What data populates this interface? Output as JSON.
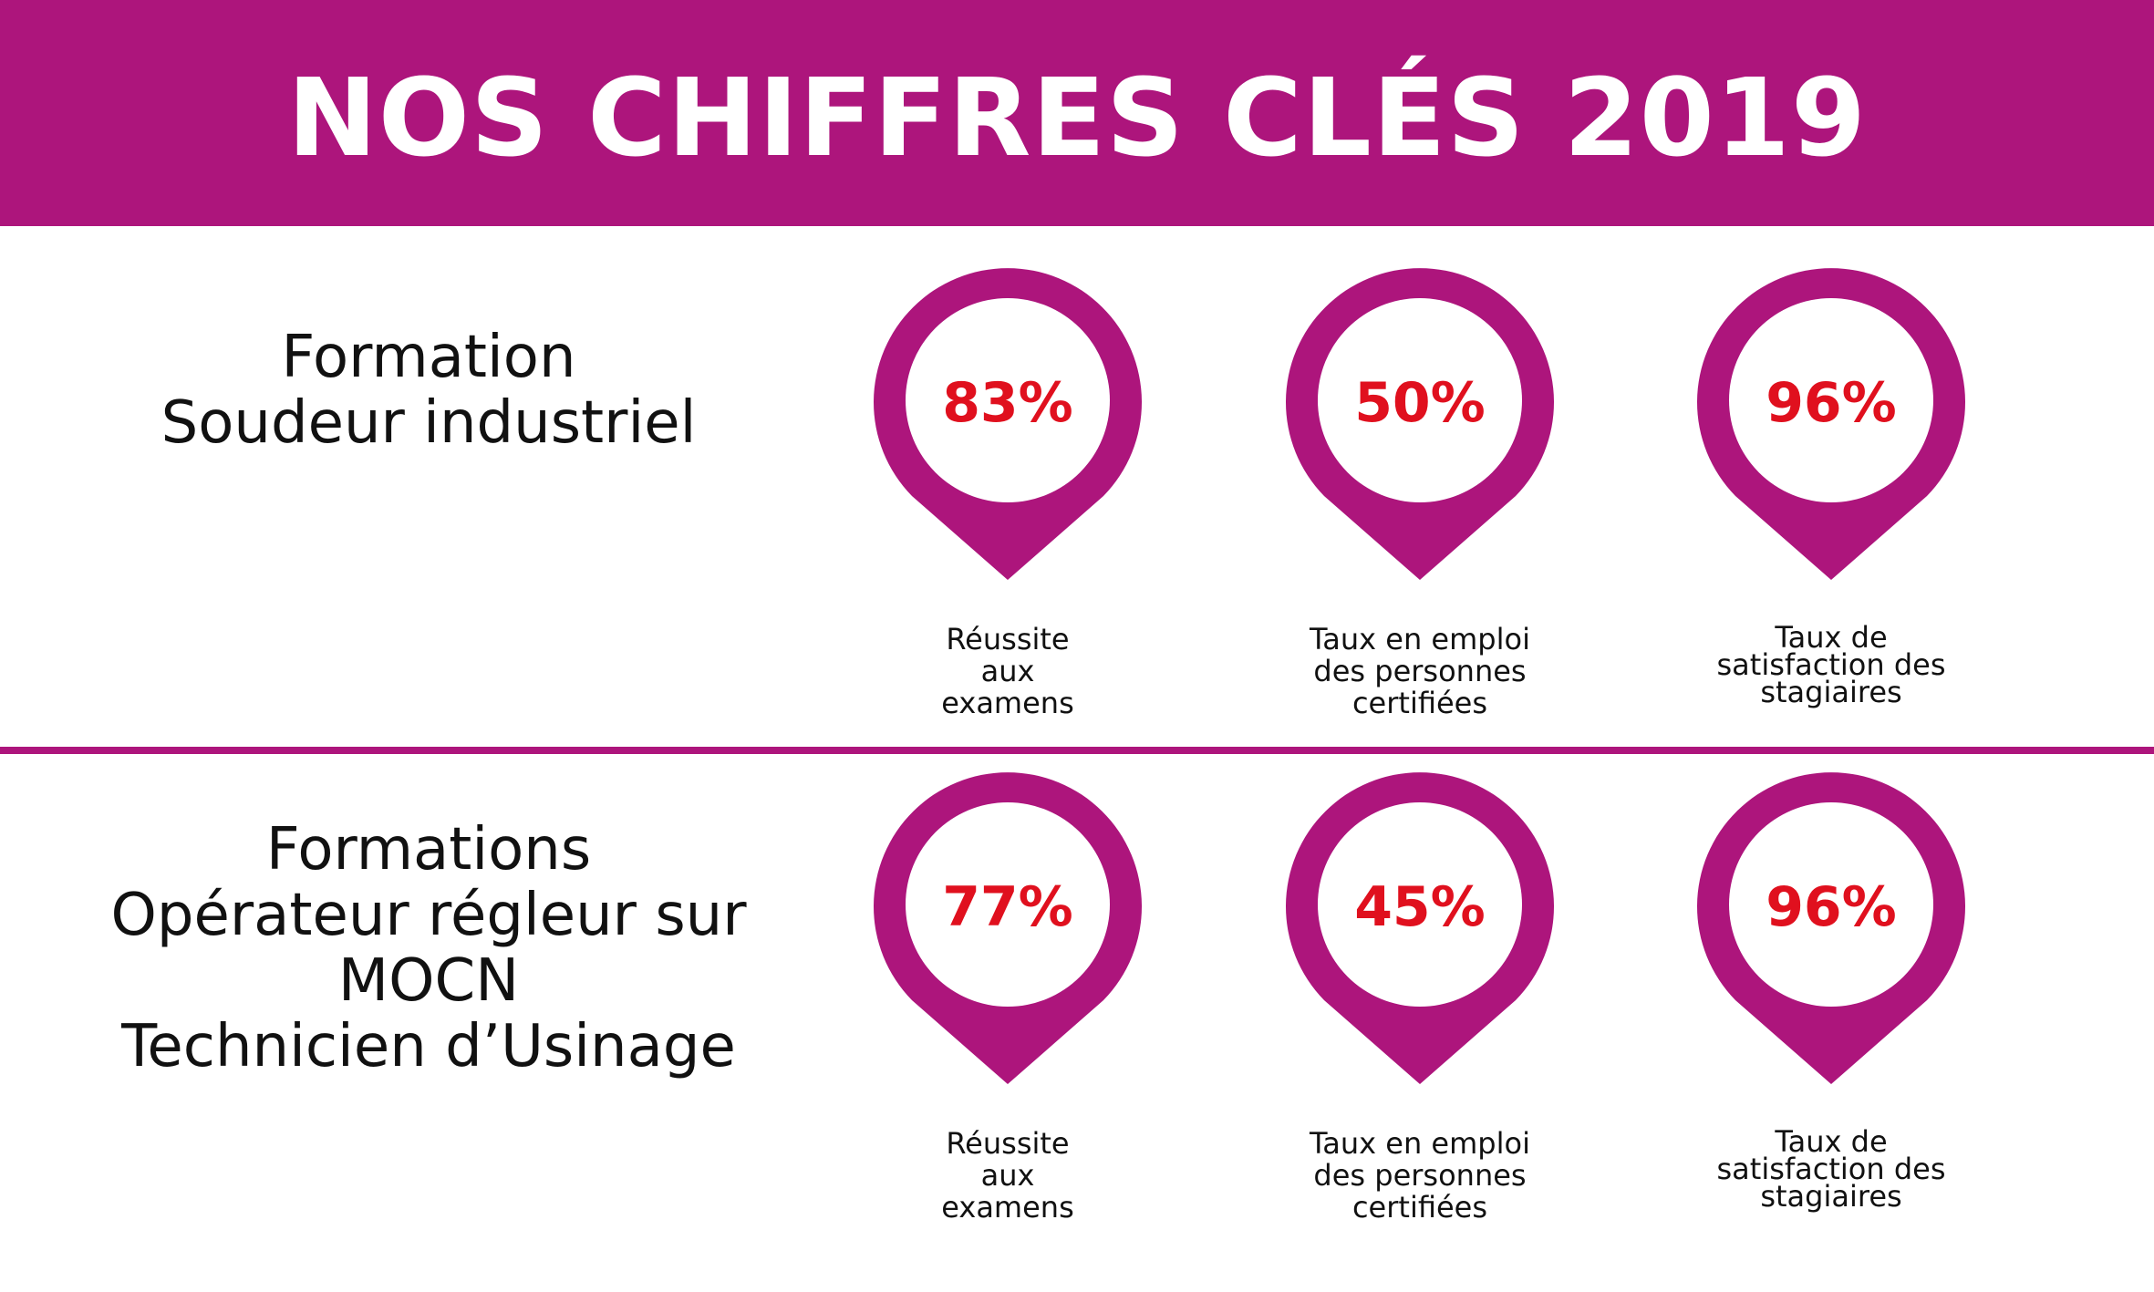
{
  "header": {
    "title": "NOS CHIFFRES CLÉS 2019"
  },
  "colors": {
    "brand": "#ad157c",
    "value": "#e0101e",
    "text": "#111111",
    "background": "#ffffff"
  },
  "sections": [
    {
      "title_lines": [
        "Formation",
        "Soudeur industriel"
      ],
      "stats": [
        {
          "value": "83%",
          "label_lines": [
            "Réussite",
            "aux",
            "examens"
          ],
          "icon": "map-pin-icon"
        },
        {
          "value": "50%",
          "label_lines": [
            "Taux en emploi",
            "des personnes",
            "certifiées"
          ],
          "icon": "map-pin-icon"
        },
        {
          "value": "96%",
          "label_lines": [
            "Taux de",
            "satisfaction des",
            "stagiaires"
          ],
          "icon": "map-pin-icon"
        }
      ]
    },
    {
      "title_lines": [
        "Formations",
        "Opérateur régleur sur",
        "MOCN",
        "Technicien d’Usinage"
      ],
      "stats": [
        {
          "value": "77%",
          "label_lines": [
            "Réussite",
            "aux",
            "examens"
          ],
          "icon": "map-pin-icon"
        },
        {
          "value": "45%",
          "label_lines": [
            "Taux en emploi",
            "des personnes",
            "certifiées"
          ],
          "icon": "map-pin-icon"
        },
        {
          "value": "96%",
          "label_lines": [
            "Taux de",
            "satisfaction des",
            "stagiaires"
          ],
          "icon": "map-pin-icon"
        }
      ]
    }
  ]
}
